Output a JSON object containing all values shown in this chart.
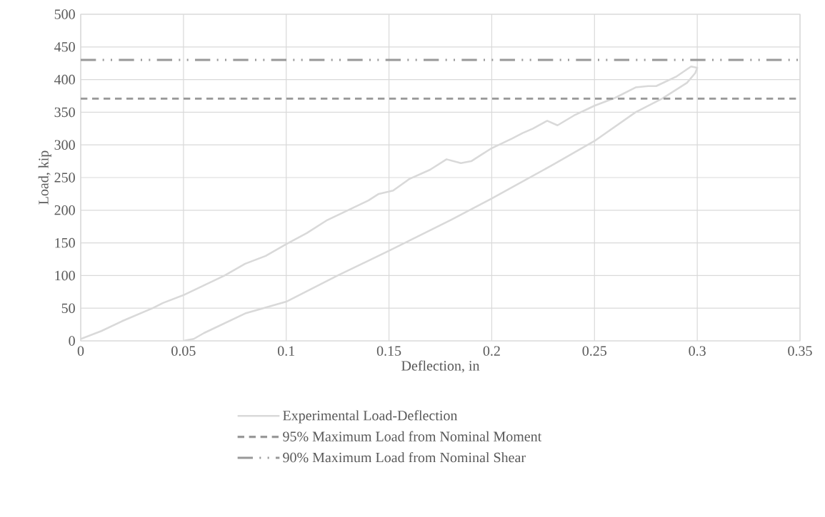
{
  "chart_data": {
    "type": "line",
    "xlabel": "Deflection, in",
    "ylabel": "Load, kip",
    "xlim": [
      0,
      0.35
    ],
    "ylim": [
      0,
      500
    ],
    "xticks": [
      0,
      0.05,
      0.1,
      0.15,
      0.2,
      0.25,
      0.3,
      0.35
    ],
    "yticks": [
      0,
      50,
      100,
      150,
      200,
      250,
      300,
      350,
      400,
      450,
      500
    ],
    "grid": true,
    "legend": "bottom",
    "marker": "none",
    "series": [
      {
        "name": "Experimental Load-Deflection",
        "color": "#d9d9d9",
        "line_style": "solid",
        "x": [
          0,
          0.01,
          0.02,
          0.035,
          0.04,
          0.05,
          0.06,
          0.07,
          0.08,
          0.09,
          0.1,
          0.11,
          0.12,
          0.13,
          0.14,
          0.145,
          0.152,
          0.16,
          0.17,
          0.178,
          0.185,
          0.19,
          0.195,
          0.2,
          0.21,
          0.215,
          0.22,
          0.227,
          0.232,
          0.24,
          0.25,
          0.26,
          0.27,
          0.276,
          0.28,
          0.29,
          0.297,
          0.3,
          0.299,
          0.295,
          0.283,
          0.27,
          0.25,
          0.23,
          0.2,
          0.18,
          0.15,
          0.125,
          0.1,
          0.08,
          0.06,
          0.055,
          0.05
        ],
        "values": [
          3,
          15,
          30,
          50,
          58,
          70,
          85,
          100,
          118,
          130,
          148,
          165,
          185,
          200,
          215,
          225,
          230,
          248,
          262,
          278,
          272,
          275,
          285,
          295,
          310,
          318,
          325,
          337,
          330,
          345,
          360,
          372,
          388,
          390,
          390,
          405,
          420,
          418,
          410,
          395,
          371,
          350,
          306,
          270,
          218,
          185,
          138,
          100,
          60,
          42,
          12,
          3,
          0
        ]
      },
      {
        "name": "95% Maximum Load from Nominal Moment",
        "color": "#999999",
        "line_style": "dashed",
        "x": [
          0,
          0.35
        ],
        "values": [
          371,
          371
        ]
      },
      {
        "name": "90% Maximum Load from Nominal Shear",
        "color": "#999999",
        "line_style": "dashdotdot",
        "x": [
          0,
          0.35
        ],
        "values": [
          430,
          430
        ]
      }
    ]
  }
}
